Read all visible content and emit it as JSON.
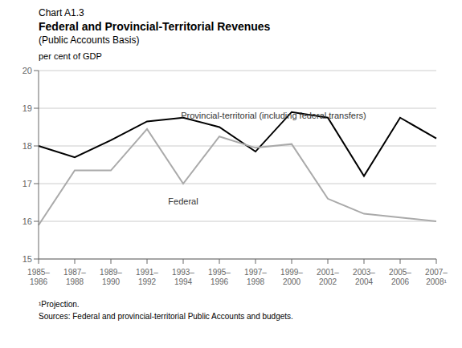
{
  "chart_data": {
    "type": "line",
    "chart_number": "Chart A1.3",
    "title": "Federal and Provincial-Territorial Revenues",
    "subtitle": "(Public Accounts Basis)",
    "y_label": "per cent of GDP",
    "categories": [
      "1985–\n1986",
      "1987–\n1988",
      "1989–\n1990",
      "1991–\n1992",
      "1993–\n1994",
      "1995–\n1996",
      "1997–\n1998",
      "1999–\n2000",
      "2001–\n2002",
      "2003–\n2004",
      "2005–\n2006",
      "2007–\n2008¹"
    ],
    "series": [
      {
        "name": "Provincial-territorial (including federal transfers)",
        "color": "#000000",
        "values": [
          18.0,
          17.7,
          18.15,
          18.65,
          18.75,
          18.5,
          17.85,
          18.9,
          18.75,
          17.2,
          18.75,
          18.2
        ]
      },
      {
        "name": "Federal",
        "color": "#aaaaaa",
        "values": [
          15.9,
          17.35,
          17.35,
          18.45,
          17.0,
          18.25,
          17.95,
          18.05,
          16.6,
          16.2,
          16.1,
          16.0
        ]
      }
    ],
    "annotations": [
      {
        "text": "Provincial-territorial (including federal transfers)",
        "x": 6.5,
        "y": 18.62,
        "position": "top"
      },
      {
        "text": "Federal",
        "x": 4.0,
        "y": 16.72,
        "position": "bottom"
      }
    ],
    "ylim": [
      15,
      20
    ],
    "yticks": [
      15,
      16,
      17,
      18,
      19,
      20
    ],
    "grid": true,
    "footnotes": [
      "¹Projection.",
      "Sources: Federal and provincial-territorial Public Accounts and budgets."
    ]
  }
}
